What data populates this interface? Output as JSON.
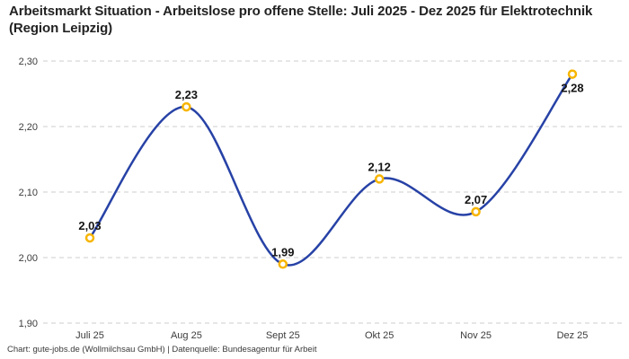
{
  "header": {
    "title": "Arbeitsmarkt Situation - Arbeitslose pro offene Stelle: Juli 2025 - Dez 2025 für Elektrotechnik (Region Leipzig)"
  },
  "footer": {
    "source": "Chart: gute-jobs.de (Wollmilchsau GmbH) | Datenquelle: Bundesagentur für Arbeit"
  },
  "chart_data": {
    "type": "line",
    "title": "Arbeitsmarkt Situation - Arbeitslose pro offene Stelle: Juli 2025 - Dez 2025 für Elektrotechnik (Region Leipzig)",
    "categories": [
      "Juli 25",
      "Aug 25",
      "Sept 25",
      "Okt 25",
      "Nov 25",
      "Dez 25"
    ],
    "values": [
      2.03,
      2.23,
      1.99,
      2.12,
      2.07,
      2.28
    ],
    "point_labels": [
      "2,03",
      "2,23",
      "1,99",
      "2,12",
      "2,07",
      "2,28"
    ],
    "point_label_positions": [
      "top",
      "top",
      "top",
      "top",
      "top",
      "bottom"
    ],
    "y_ticks": [
      {
        "label": "2,30",
        "value": 2.3
      },
      {
        "label": "2,20",
        "value": 2.2
      },
      {
        "label": "2,10",
        "value": 2.1
      },
      {
        "label": "2,00",
        "value": 2.0
      },
      {
        "label": "1,90",
        "value": 1.9
      }
    ],
    "ylim": [
      1.9,
      2.3
    ],
    "xlabel": "",
    "ylabel": "",
    "legend": "none",
    "grid": "horizontal-dashed",
    "curve": "smooth-spline",
    "colors": {
      "line": "#2742a6",
      "marker_stroke": "#f7b500",
      "marker_fill": "#ffffff",
      "grid": "#cccccc",
      "tick_text": "#3c3c3c",
      "point_label_text": "#141414",
      "title_text": "#222222",
      "source_text": "#3a3a3a"
    }
  }
}
